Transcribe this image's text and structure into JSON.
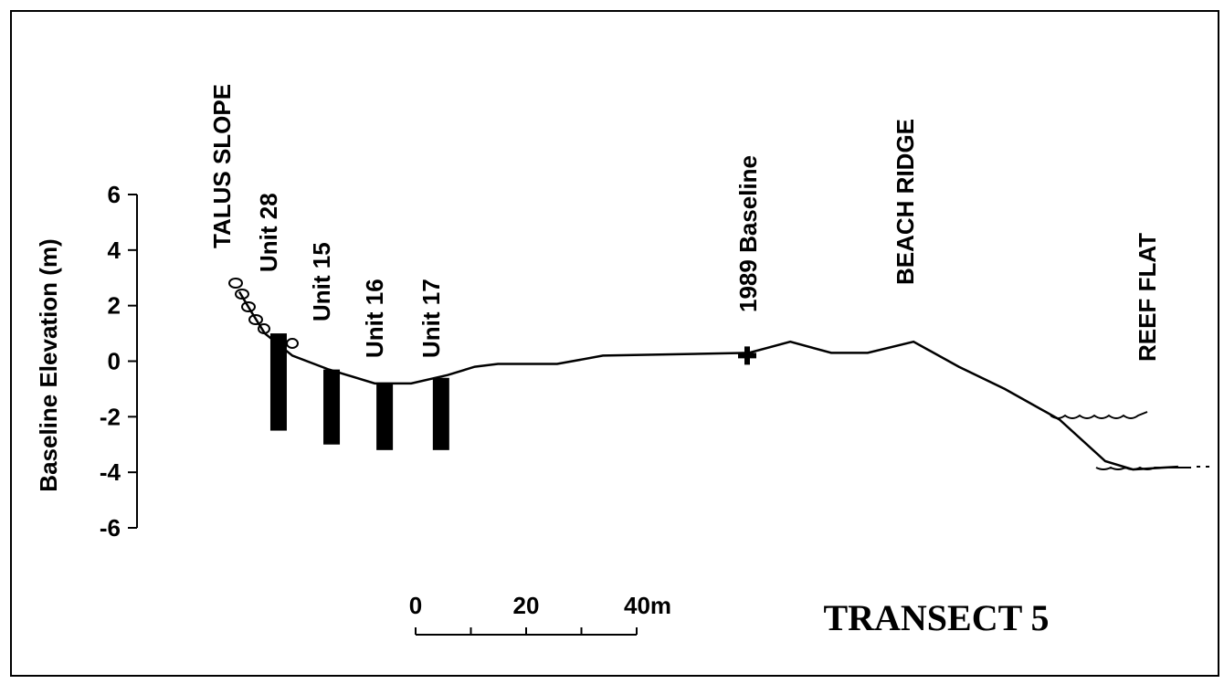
{
  "chart_data": {
    "type": "profile",
    "title": "TRANSECT 5",
    "y_label": "Baseline Elevation (m)",
    "ylim": [
      -6,
      6
    ],
    "yticks": [
      6,
      4,
      2,
      0,
      -2,
      -4,
      -6
    ],
    "xlim": [
      -36,
      145
    ],
    "profile": {
      "x": [
        -31.9,
        -29.8,
        -27.3,
        -22.3,
        -15.7,
        -7.4,
        -0.8,
        5.8,
        10.7,
        14.9,
        25.6,
        33.9,
        60.3,
        67.8,
        75.2,
        81.8,
        90.1,
        98.3,
        106.6,
        116.5,
        124.8,
        129.8,
        138
      ],
      "y": [
        2.5,
        1.8,
        1.0,
        0.2,
        -0.3,
        -0.8,
        -0.8,
        -0.5,
        -0.2,
        -0.1,
        -0.1,
        0.2,
        0.3,
        0.7,
        0.3,
        0.3,
        0.7,
        -0.2,
        -1.0,
        -2.1,
        -3.6,
        -3.9,
        -3.8
      ]
    },
    "units": [
      {
        "label": "Unit 28",
        "x": -24.8,
        "top": 1.0,
        "bottom": -2.5
      },
      {
        "label": "Unit 15",
        "x": -15.2,
        "top": -0.3,
        "bottom": -3.0
      },
      {
        "label": "Unit 16",
        "x": -5.6,
        "top": -0.8,
        "bottom": -3.2
      },
      {
        "label": "Unit 17",
        "x": 4.6,
        "top": -0.6,
        "bottom": -3.2
      }
    ],
    "features": [
      {
        "label": "TALUS SLOPE",
        "x": -35.2
      },
      {
        "label": "1989 Baseline",
        "x": 60.0
      },
      {
        "label": "BEACH RIDGE",
        "x": 88.4
      },
      {
        "label": "REEF FLAT",
        "x": 132.2
      }
    ],
    "baseline_marker": {
      "x": 60.0,
      "y": 0.2
    },
    "scale_ticks": [
      0,
      20,
      {
        "value": 40,
        "label": "40m"
      }
    ]
  }
}
